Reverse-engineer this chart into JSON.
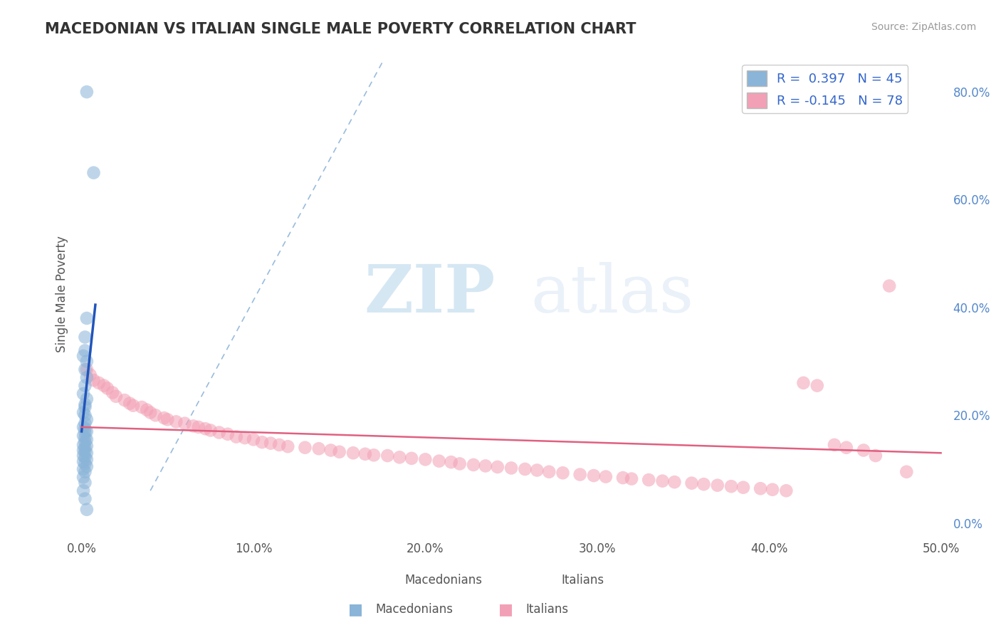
{
  "title": "MACEDONIAN VS ITALIAN SINGLE MALE POVERTY CORRELATION CHART",
  "source": "Source: ZipAtlas.com",
  "ylabel": "Single Male Poverty",
  "xlim": [
    -0.003,
    0.505
  ],
  "ylim": [
    -0.03,
    0.88
  ],
  "xticks": [
    0.0,
    0.1,
    0.2,
    0.3,
    0.4,
    0.5
  ],
  "xtick_labels": [
    "0.0%",
    "10.0%",
    "20.0%",
    "30.0%",
    "40.0%",
    "50.0%"
  ],
  "yticks_right": [
    0.0,
    0.2,
    0.4,
    0.6,
    0.8
  ],
  "ytick_labels_right": [
    "0.0%",
    "20.0%",
    "40.0%",
    "60.0%",
    "80.0%"
  ],
  "legend_blue_r": "R =  0.397",
  "legend_blue_n": "N = 45",
  "legend_pink_r": "R = -0.145",
  "legend_pink_n": "N = 78",
  "blue_color": "#8ab4d8",
  "pink_color": "#f2a0b5",
  "trendline_blue": "#2255bb",
  "trendline_pink": "#e06080",
  "diag_color": "#99bbdd",
  "blue_scatter_x": [
    0.003,
    0.007,
    0.003,
    0.002,
    0.002,
    0.001,
    0.003,
    0.002,
    0.003,
    0.002,
    0.001,
    0.003,
    0.002,
    0.002,
    0.001,
    0.002,
    0.003,
    0.002,
    0.001,
    0.002,
    0.003,
    0.002,
    0.001,
    0.002,
    0.003,
    0.002,
    0.001,
    0.003,
    0.002,
    0.001,
    0.002,
    0.003,
    0.001,
    0.002,
    0.003,
    0.001,
    0.002,
    0.003,
    0.001,
    0.002,
    0.001,
    0.002,
    0.001,
    0.002,
    0.003
  ],
  "blue_scatter_y": [
    0.8,
    0.65,
    0.38,
    0.345,
    0.32,
    0.31,
    0.3,
    0.285,
    0.27,
    0.255,
    0.24,
    0.23,
    0.22,
    0.215,
    0.205,
    0.2,
    0.192,
    0.185,
    0.178,
    0.175,
    0.17,
    0.168,
    0.162,
    0.158,
    0.155,
    0.15,
    0.145,
    0.143,
    0.14,
    0.135,
    0.133,
    0.13,
    0.125,
    0.122,
    0.118,
    0.114,
    0.11,
    0.105,
    0.1,
    0.095,
    0.085,
    0.075,
    0.06,
    0.045,
    0.025
  ],
  "pink_scatter_x": [
    0.003,
    0.005,
    0.007,
    0.01,
    0.013,
    0.015,
    0.018,
    0.02,
    0.025,
    0.028,
    0.03,
    0.035,
    0.038,
    0.04,
    0.043,
    0.048,
    0.05,
    0.055,
    0.06,
    0.065,
    0.068,
    0.072,
    0.075,
    0.08,
    0.085,
    0.09,
    0.095,
    0.1,
    0.105,
    0.11,
    0.115,
    0.12,
    0.13,
    0.138,
    0.145,
    0.15,
    0.158,
    0.165,
    0.17,
    0.178,
    0.185,
    0.192,
    0.2,
    0.208,
    0.215,
    0.22,
    0.228,
    0.235,
    0.242,
    0.25,
    0.258,
    0.265,
    0.272,
    0.28,
    0.29,
    0.298,
    0.305,
    0.315,
    0.32,
    0.33,
    0.338,
    0.345,
    0.355,
    0.362,
    0.37,
    0.378,
    0.385,
    0.395,
    0.402,
    0.41,
    0.42,
    0.428,
    0.438,
    0.445,
    0.455,
    0.462,
    0.47,
    0.48
  ],
  "pink_scatter_y": [
    0.285,
    0.275,
    0.265,
    0.26,
    0.255,
    0.25,
    0.242,
    0.235,
    0.228,
    0.222,
    0.218,
    0.215,
    0.21,
    0.205,
    0.2,
    0.195,
    0.192,
    0.188,
    0.185,
    0.18,
    0.178,
    0.175,
    0.172,
    0.168,
    0.165,
    0.16,
    0.158,
    0.155,
    0.15,
    0.148,
    0.145,
    0.142,
    0.14,
    0.138,
    0.135,
    0.132,
    0.13,
    0.128,
    0.126,
    0.125,
    0.122,
    0.12,
    0.118,
    0.115,
    0.113,
    0.11,
    0.108,
    0.106,
    0.104,
    0.102,
    0.1,
    0.098,
    0.095,
    0.093,
    0.09,
    0.088,
    0.086,
    0.084,
    0.082,
    0.08,
    0.078,
    0.076,
    0.074,
    0.072,
    0.07,
    0.068,
    0.066,
    0.064,
    0.062,
    0.06,
    0.26,
    0.255,
    0.145,
    0.14,
    0.135,
    0.125,
    0.44,
    0.095
  ],
  "watermark_zip": "ZIP",
  "watermark_atlas": "atlas",
  "background_color": "#ffffff",
  "grid_color": "#cccccc"
}
